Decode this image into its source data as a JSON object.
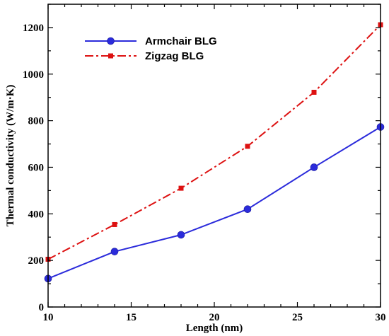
{
  "chart_data": {
    "type": "line",
    "title": "",
    "xlabel": "Length (nm)",
    "ylabel": "Thermal conductivity (W/m·K)",
    "xlim": [
      10,
      30
    ],
    "ylim": [
      0,
      1300
    ],
    "x_ticks": [
      10,
      15,
      20,
      25,
      30
    ],
    "y_ticks": [
      0,
      200,
      400,
      600,
      800,
      1000,
      1200
    ],
    "grid": false,
    "legend_position": "top-left",
    "series": [
      {
        "name": "Armchair BLG",
        "color": "#2b2bdb",
        "line_style": "solid",
        "marker": "circle",
        "x": [
          10,
          14,
          18,
          22,
          26,
          30
        ],
        "y": [
          122,
          238,
          310,
          420,
          600,
          773
        ]
      },
      {
        "name": "Zigzag BLG",
        "color": "#dd1111",
        "line_style": "dash-dot",
        "marker": "square",
        "x": [
          10,
          14,
          18,
          22,
          26,
          30
        ],
        "y": [
          205,
          354,
          510,
          690,
          922,
          1212
        ]
      }
    ]
  }
}
